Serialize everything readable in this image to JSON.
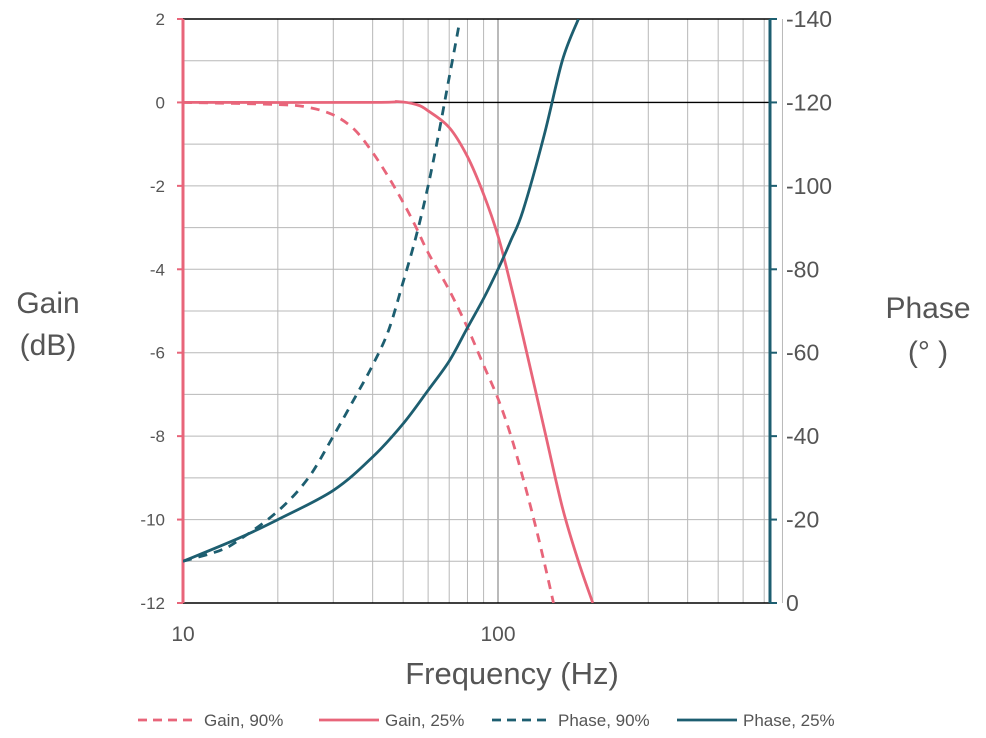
{
  "chart_data": {
    "type": "line",
    "title": "",
    "xlabel": "Frequency (Hz)",
    "x_scale": "log",
    "xlim": [
      10,
      800
    ],
    "x_ticks": [
      "10",
      "100"
    ],
    "y_left": {
      "label_lines": [
        "Gain",
        "(dB)"
      ],
      "lim": [
        -12,
        2
      ],
      "ticks": [
        "2",
        "0",
        "-2",
        "-4",
        "-6",
        "-8",
        "-10",
        "-12"
      ],
      "color": "#e8657a"
    },
    "y_right": {
      "label_lines": [
        "Phase",
        "(° )"
      ],
      "lim": [
        0,
        -140
      ],
      "ticks": [
        "-140",
        "-120",
        "-100",
        "-80",
        "-60",
        "-40",
        "-20",
        "0"
      ],
      "color": "#1d5e70"
    },
    "grid": true,
    "legend_position": "bottom",
    "series": [
      {
        "name": "Gain, 90%",
        "axis": "left",
        "color": "#e8657a",
        "dash": "dashed",
        "points": [
          [
            10,
            0
          ],
          [
            20,
            -0.05
          ],
          [
            25,
            -0.12
          ],
          [
            30,
            -0.3
          ],
          [
            35,
            -0.65
          ],
          [
            40,
            -1.2
          ],
          [
            45,
            -1.8
          ],
          [
            50,
            -2.4
          ],
          [
            55,
            -3.0
          ],
          [
            60,
            -3.6
          ],
          [
            70,
            -4.5
          ],
          [
            80,
            -5.4
          ],
          [
            90,
            -6.3
          ],
          [
            100,
            -7.1
          ],
          [
            110,
            -8.0
          ],
          [
            120,
            -9.0
          ],
          [
            130,
            -10.0
          ],
          [
            140,
            -11.0
          ],
          [
            150,
            -12.0
          ]
        ]
      },
      {
        "name": "Gain, 25%",
        "axis": "left",
        "color": "#e8657a",
        "dash": "solid",
        "points": [
          [
            10,
            0
          ],
          [
            40,
            0
          ],
          [
            48,
            0.02
          ],
          [
            55,
            -0.05
          ],
          [
            60,
            -0.2
          ],
          [
            70,
            -0.6
          ],
          [
            80,
            -1.3
          ],
          [
            90,
            -2.2
          ],
          [
            100,
            -3.2
          ],
          [
            110,
            -4.4
          ],
          [
            120,
            -5.6
          ],
          [
            140,
            -7.8
          ],
          [
            160,
            -9.7
          ],
          [
            180,
            -11.0
          ],
          [
            200,
            -12.0
          ]
        ]
      },
      {
        "name": "Phase, 90%",
        "axis": "right",
        "color": "#1d5e70",
        "dash": "dashed",
        "points": [
          [
            10,
            10
          ],
          [
            13,
            12.5
          ],
          [
            15,
            15
          ],
          [
            20,
            22
          ],
          [
            25,
            30
          ],
          [
            30,
            40
          ],
          [
            35,
            49
          ],
          [
            40,
            57
          ],
          [
            45,
            65.5
          ],
          [
            50,
            77
          ],
          [
            55,
            88
          ],
          [
            60,
            100
          ],
          [
            65,
            113
          ],
          [
            70,
            126
          ],
          [
            75,
            138
          ]
        ]
      },
      {
        "name": "Phase, 25%",
        "axis": "right",
        "color": "#1d5e70",
        "dash": "solid",
        "points": [
          [
            10,
            10
          ],
          [
            15,
            15.5
          ],
          [
            20,
            20
          ],
          [
            30,
            27
          ],
          [
            40,
            35
          ],
          [
            50,
            43
          ],
          [
            60,
            51
          ],
          [
            70,
            58
          ],
          [
            80,
            66
          ],
          [
            90,
            73
          ],
          [
            100,
            80
          ],
          [
            110,
            87
          ],
          [
            120,
            94
          ],
          [
            140,
            112
          ],
          [
            160,
            130
          ],
          [
            180,
            140
          ]
        ]
      }
    ]
  }
}
